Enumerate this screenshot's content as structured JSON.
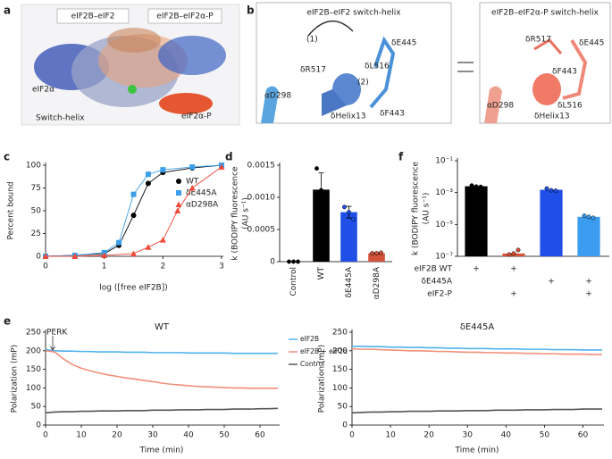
{
  "panel_labels": [
    "a",
    "b",
    "c",
    "d",
    "e",
    "f"
  ],
  "structure_image": {
    "labels": [
      "eIF2B–eIF2",
      "eIF2B–eIF2α-P",
      "eIF2α",
      "Switch-helix",
      "eIF2α-P"
    ]
  },
  "switch_helix": {
    "left": {
      "title": "eIF2B–eIF2 switch-helix",
      "labels": [
        "(1)",
        "δR517",
        "δL516",
        "δE445",
        "(2)",
        "αD298",
        "δHelix13",
        "δF443"
      ]
    },
    "right": {
      "title": "eIF2B–eIF2α-P switch-helix",
      "labels": [
        "δR517",
        "δE445",
        "δF443",
        "αD298",
        "δHelix13",
        "δL516"
      ]
    }
  },
  "chart_data": [
    {
      "type": "scatter",
      "xlabel": "log ([free eIF2B])",
      "ylabel": "Percent bound",
      "lines": true,
      "legend": "right",
      "xlim": [
        0,
        3
      ],
      "xticks": [
        0,
        1,
        2,
        3
      ],
      "ylim": [
        0,
        100
      ],
      "yticks": [
        0,
        25,
        50,
        75,
        100
      ],
      "series": [
        {
          "name": "WT",
          "color": "#000000",
          "marker": "circle",
          "x": [
            0,
            0.5,
            1,
            1.25,
            1.5,
            1.75,
            2,
            2.5,
            3
          ],
          "values": [
            0,
            1,
            3,
            12,
            45,
            80,
            92,
            97,
            100
          ]
        },
        {
          "name": "δE445A",
          "color": "#3a9fe8",
          "marker": "square",
          "x": [
            0,
            0.5,
            1,
            1.25,
            1.5,
            1.75,
            2,
            2.5,
            3
          ],
          "values": [
            0,
            1,
            4,
            15,
            68,
            90,
            95,
            98,
            100
          ]
        },
        {
          "name": "αD298A",
          "color": "#f04a3a",
          "marker": "triangle",
          "x": [
            0,
            0.5,
            1,
            1.5,
            1.75,
            2,
            2.25,
            2.5,
            3
          ],
          "values": [
            0,
            0,
            1,
            3,
            10,
            18,
            50,
            75,
            98
          ]
        }
      ]
    },
    {
      "type": "bar",
      "ylabel": [
        "k (BODIPY fluorescence",
        "(AU s⁻¹)"
      ],
      "categories": [
        "Control",
        "WT",
        "δE445A",
        "αD298A"
      ],
      "values": [
        0,
        0.00112,
        0.00077,
        0.00013
      ],
      "errors": [
        0,
        0.00026,
        9e-05,
        1e-05
      ],
      "colors": [
        "#000000",
        "#000000",
        "#1f4fe6",
        "#d5533a"
      ],
      "points": [
        [
          0,
          0,
          0
        ],
        [
          0.00145,
          0.00111,
          0.0008
        ],
        [
          0.00085,
          0.00077,
          0.00066
        ],
        [
          0.00013,
          0.00013,
          0.00014
        ]
      ],
      "ylim": [
        0,
        0.0015
      ],
      "yticks": [
        0,
        0.0005,
        {
          "value": 0.001,
          "label": "0.0010"
        },
        0.0015
      ]
    },
    {
      "type": "bar",
      "log_y": true,
      "ylabel": [
        "k (BODIPY fluorescence",
        "(AU s⁻¹)"
      ],
      "categories": [
        null,
        null,
        null,
        null
      ],
      "values": [
        0.0025,
        1.5e-07,
        0.0015,
        3e-05
      ],
      "colors": [
        "#000000",
        "#d5533a",
        "#1f4fe6",
        "#3b9cf0"
      ],
      "points": [
        [
          0.0028,
          0.0024,
          0.0023
        ],
        [
          1.3e-07,
          1.5e-07,
          2.5e-07
        ],
        [
          0.0018,
          0.0014,
          0.0013
        ],
        [
          3.5e-05,
          3e-05,
          2.6e-05
        ]
      ],
      "ylim": [
        1e-07,
        0.1
      ],
      "yticks": [
        {
          "value": 1e-07,
          "label": "10⁻⁷"
        },
        {
          "value": 1e-05,
          "label": "10⁻⁵"
        },
        {
          "value": 0.001,
          "label": "10⁻³"
        },
        {
          "value": 0.1,
          "label": "10⁻¹"
        }
      ],
      "table": {
        "rows": [
          {
            "label": "eIF2B WT",
            "cells": [
              "+",
              "+",
              null,
              null
            ]
          },
          {
            "label": "δE445A",
            "cells": [
              null,
              null,
              "+",
              "+"
            ]
          },
          {
            "label": "eIF2-P",
            "cells": [
              null,
              "+",
              null,
              "+"
            ]
          }
        ]
      }
    },
    {
      "type": "line",
      "title": "WT",
      "xlabel": "Time (min)",
      "ylabel": "Polarization (mP)",
      "legend": "outside right",
      "annotations": [
        {
          "text": "PERK",
          "x": 2
        }
      ],
      "xlim": [
        0,
        65
      ],
      "xticks": [
        0,
        10,
        20,
        30,
        40,
        50,
        60
      ],
      "ylim": [
        0,
        250
      ],
      "yticks": [
        0,
        50,
        100,
        150,
        200,
        250
      ],
      "x": [
        0,
        2.5,
        5,
        7.5,
        10,
        12.5,
        15,
        17.5,
        20,
        22.5,
        25,
        27.5,
        30,
        32.5,
        35,
        37.5,
        40,
        42.5,
        45,
        47.5,
        50,
        52.5,
        55,
        57.5,
        60,
        62.5,
        65
      ],
      "series": [
        {
          "name": "eIF2B",
          "color": "#4fb3f0",
          "values": [
            203,
            200,
            199,
            199,
            198,
            198,
            197,
            197,
            197,
            196,
            196,
            196,
            195,
            195,
            195,
            195,
            194,
            194,
            194,
            194,
            194,
            193,
            193,
            193,
            193,
            193,
            193
          ]
        },
        {
          "name": "eIF2B + eIF2α",
          "color": "#f0907a",
          "values": [
            200,
            197,
            178,
            163,
            153,
            146,
            140,
            135,
            131,
            127,
            124,
            120,
            117,
            113,
            110,
            108,
            106,
            104,
            103,
            102,
            101,
            100,
            100,
            99,
            99,
            99,
            99
          ]
        },
        {
          "name": "Control",
          "color": "#555555",
          "values": [
            33,
            35,
            36,
            36,
            37,
            37,
            38,
            38,
            38,
            39,
            39,
            39,
            40,
            40,
            40,
            41,
            41,
            41,
            42,
            42,
            42,
            43,
            43,
            43,
            44,
            44,
            45
          ]
        }
      ]
    },
    {
      "type": "line",
      "title": "δE445A",
      "xlabel": "Time (min)",
      "ylabel": "Polarization (mP)",
      "xlim": [
        0,
        65
      ],
      "xticks": [
        0,
        10,
        20,
        30,
        40,
        50,
        60
      ],
      "ylim": [
        0,
        250
      ],
      "yticks": [
        0,
        50,
        100,
        150,
        200,
        250
      ],
      "x": [
        0,
        2.5,
        5,
        7.5,
        10,
        12.5,
        15,
        17.5,
        20,
        22.5,
        25,
        27.5,
        30,
        32.5,
        35,
        37.5,
        40,
        42.5,
        45,
        47.5,
        50,
        52.5,
        55,
        57.5,
        60,
        62.5,
        65
      ],
      "series": [
        {
          "name": "eIF2B",
          "color": "#4fb3f0",
          "values": [
            212,
            212,
            211,
            211,
            210,
            210,
            209,
            209,
            208,
            208,
            207,
            207,
            206,
            206,
            206,
            205,
            205,
            205,
            204,
            204,
            204,
            203,
            203,
            203,
            202,
            202,
            202
          ]
        },
        {
          "name": "eIF2B + eIF2α",
          "color": "#f0907a",
          "values": [
            205,
            204,
            204,
            203,
            202,
            201,
            200,
            200,
            199,
            198,
            198,
            197,
            196,
            196,
            195,
            195,
            194,
            194,
            193,
            193,
            192,
            192,
            191,
            191,
            191,
            190,
            190
          ]
        },
        {
          "name": "Control",
          "color": "#555555",
          "values": [
            33,
            34,
            35,
            35,
            36,
            36,
            37,
            37,
            37,
            38,
            38,
            38,
            39,
            39,
            39,
            40,
            40,
            40,
            41,
            41,
            41,
            42,
            42,
            42,
            43,
            43,
            43
          ]
        }
      ]
    }
  ]
}
